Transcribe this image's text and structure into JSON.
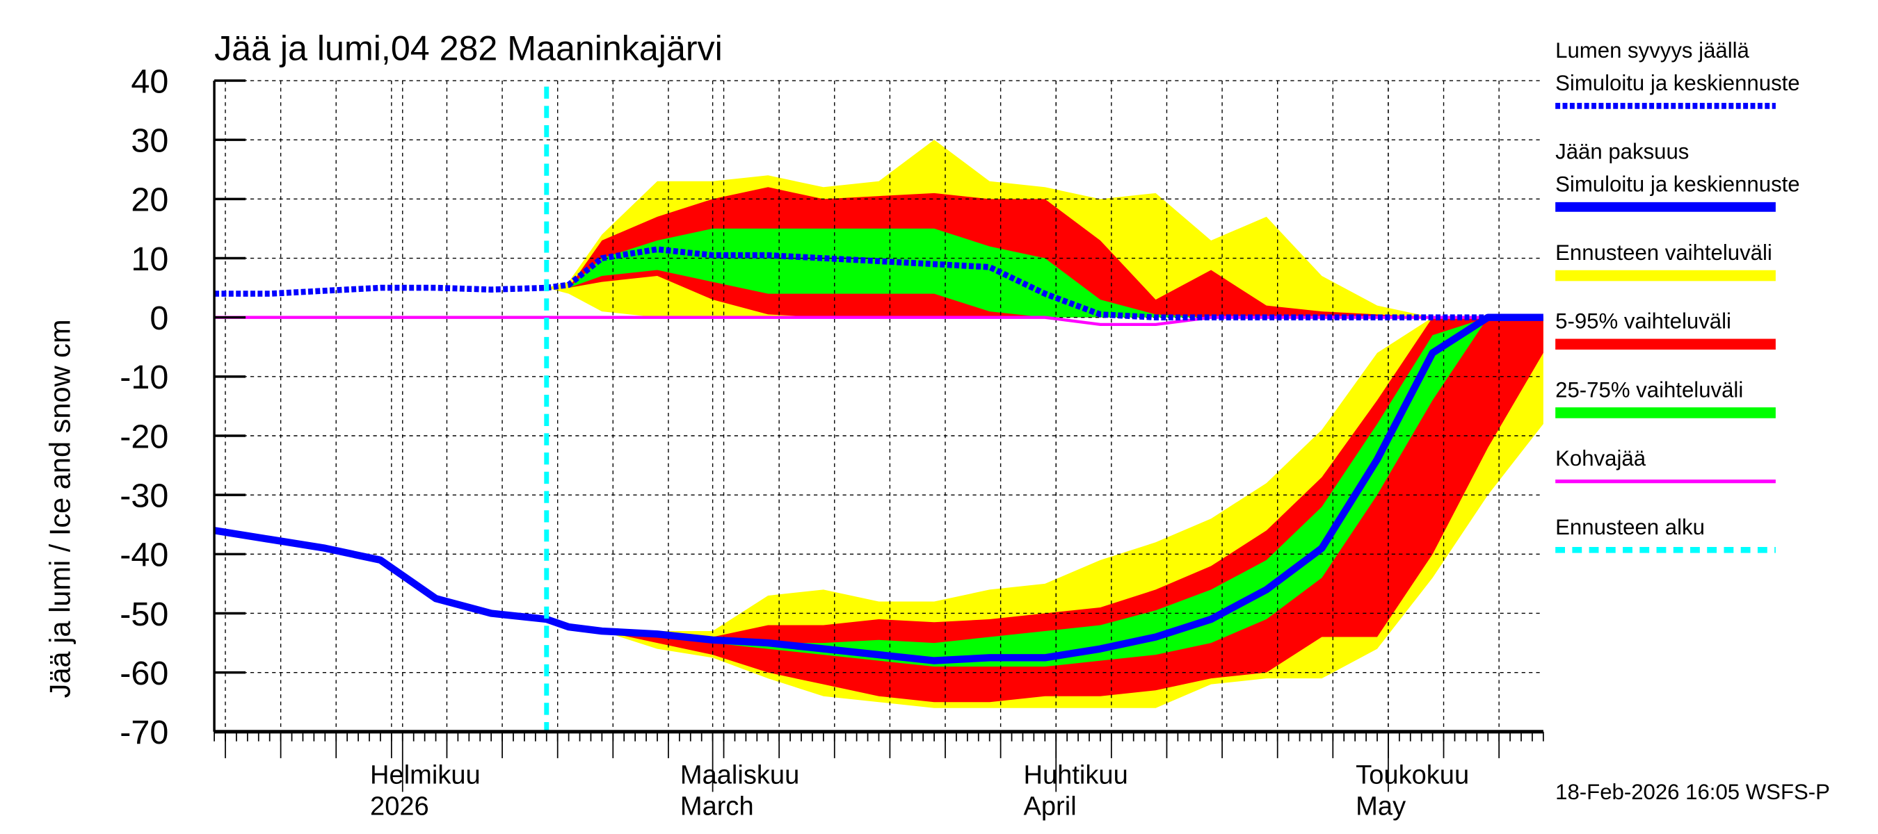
{
  "chart_data": {
    "type": "area",
    "title": "Jää ja lumi,04 282 Maaninkajärvi",
    "ylabel": "Jää ja lumi / Ice and snow    cm",
    "ylim": [
      -70,
      40
    ],
    "yticks": [
      40,
      30,
      20,
      10,
      0,
      -10,
      -20,
      -30,
      -40,
      -50,
      -60,
      -70
    ],
    "xlim": [
      "2026-01-15",
      "2026-05-15"
    ],
    "grid": true,
    "legend_placement": "right",
    "month_labels": [
      {
        "date": "2026-02-01",
        "line1": "Helmikuu",
        "line2": "2026"
      },
      {
        "date": "2026-03-01",
        "line1": "Maaliskuu",
        "line2": "March"
      },
      {
        "date": "2026-04-01",
        "line1": "Huhtikuu",
        "line2": "April"
      },
      {
        "date": "2026-05-01",
        "line1": "Toukokuu",
        "line2": "May"
      }
    ],
    "forecast_start": "2026-02-14",
    "x": [
      "2026-01-15",
      "2026-01-20",
      "2026-01-25",
      "2026-01-30",
      "2026-02-04",
      "2026-02-09",
      "2026-02-14",
      "2026-02-16",
      "2026-02-19",
      "2026-02-24",
      "2026-03-01",
      "2026-03-06",
      "2026-03-11",
      "2026-03-16",
      "2026-03-21",
      "2026-03-26",
      "2026-03-31",
      "2026-04-05",
      "2026-04-10",
      "2026-04-15",
      "2026-04-20",
      "2026-04-25",
      "2026-04-30",
      "2026-05-05",
      "2026-05-10",
      "2026-05-15"
    ],
    "series": {
      "snow_depth": [
        4,
        4,
        4.5,
        5,
        5,
        4.7,
        5,
        5.5,
        10,
        11.5,
        10.5,
        10.5,
        10,
        9.5,
        9,
        8.5,
        4,
        0.5,
        0,
        0,
        0,
        0,
        0,
        0,
        0,
        0
      ],
      "ice_thickness": [
        -36,
        -37.5,
        -39,
        -41,
        -47.5,
        -50,
        -51,
        -52.3,
        -53,
        -53.5,
        -54.5,
        -55,
        -56,
        -57,
        -58,
        -57.5,
        -57.5,
        -56,
        -54,
        -51,
        -46,
        -39,
        -24,
        -6,
        0,
        0
      ],
      "slush_ice": [
        0,
        0,
        0,
        0,
        0,
        0,
        0,
        0,
        0,
        0,
        0,
        0,
        0,
        0,
        0,
        0,
        0,
        -1.2,
        -1.2,
        0,
        0,
        0,
        0,
        0,
        0,
        0
      ],
      "snow_yellow_upper": [
        null,
        null,
        null,
        null,
        null,
        null,
        5,
        6,
        14,
        23,
        23,
        24,
        22,
        23,
        30,
        23,
        22,
        20,
        21,
        13,
        17,
        7,
        2,
        0,
        0,
        0
      ],
      "snow_yellow_lower": [
        null,
        null,
        null,
        null,
        null,
        null,
        5,
        4,
        1,
        0,
        0,
        0,
        0,
        0,
        0,
        0,
        0,
        0,
        0,
        0,
        0,
        0,
        0,
        0,
        0,
        0
      ],
      "snow_red_upper": [
        null,
        null,
        null,
        null,
        null,
        null,
        5,
        5,
        13,
        17,
        20,
        22,
        20,
        20.5,
        21,
        20,
        20,
        13,
        3,
        8,
        2,
        1,
        0.5,
        0,
        0,
        0
      ],
      "snow_red_lower": [
        null,
        null,
        null,
        null,
        null,
        null,
        5,
        5,
        6,
        7,
        3,
        0.5,
        0,
        0,
        0,
        0,
        0,
        0,
        0,
        0,
        0,
        0,
        0,
        0,
        0,
        0
      ],
      "snow_green_upper": [
        null,
        null,
        null,
        null,
        null,
        null,
        5,
        5,
        10,
        13,
        15,
        15,
        15,
        15,
        15,
        12,
        10,
        3,
        0.5,
        0,
        0,
        0,
        0,
        0,
        0,
        0
      ],
      "snow_green_lower": [
        null,
        null,
        null,
        null,
        null,
        null,
        5,
        5,
        7,
        8,
        6,
        4,
        4,
        4,
        4,
        1,
        0,
        0,
        0,
        0,
        0,
        0,
        0,
        0,
        0,
        0
      ],
      "ice_yellow_upper": [
        null,
        null,
        null,
        null,
        null,
        null,
        -51,
        -52,
        -52.5,
        -53,
        -53,
        -47,
        -46,
        -48,
        -48,
        -46,
        -45,
        -41,
        -38,
        -34,
        -28,
        -19,
        -6,
        0,
        0,
        0
      ],
      "ice_yellow_lower": [
        null,
        null,
        null,
        null,
        null,
        null,
        -51,
        -52,
        -53,
        -56,
        -57.5,
        -61,
        -64,
        -65,
        -66,
        -66,
        -66,
        -66,
        -66,
        -62,
        -61,
        -61,
        -56,
        -44,
        -30,
        -18
      ],
      "ice_red_upper": [
        null,
        null,
        null,
        null,
        null,
        null,
        -51,
        -52,
        -52.5,
        -53,
        -54,
        -52,
        -52,
        -51,
        -51.5,
        -51,
        -50,
        -49,
        -46,
        -42,
        -36,
        -27,
        -14,
        0,
        0,
        0
      ],
      "ice_red_lower": [
        null,
        null,
        null,
        null,
        null,
        null,
        -51,
        -52,
        -53,
        -55,
        -57,
        -60,
        -62,
        -64,
        -65,
        -65,
        -64,
        -64,
        -63,
        -61,
        -60,
        -54,
        -54,
        -40,
        -22,
        -6
      ],
      "ice_green_upper": [
        null,
        null,
        null,
        null,
        null,
        null,
        -51,
        -52,
        -52.5,
        -53.5,
        -54,
        -55,
        -55,
        -54.5,
        -55,
        -54,
        -53,
        -52,
        -49.5,
        -46,
        -41,
        -32,
        -18,
        -3,
        0,
        0
      ],
      "ice_green_lower": [
        null,
        null,
        null,
        null,
        null,
        null,
        -51,
        -52,
        -52.5,
        -53.5,
        -55,
        -56,
        -57,
        -58,
        -59,
        -59,
        -59,
        -58,
        -57,
        -55,
        -51,
        -44,
        -30,
        -14,
        0,
        0
      ]
    },
    "legend": [
      {
        "line1": "Lumen syvyys jäällä",
        "line2": "Simuloitu ja keskiennuste",
        "color": "#0000ff",
        "style": "dotted-thick"
      },
      {
        "line1": "Jään paksuus",
        "line2": "Simuloitu ja keskiennuste",
        "color": "#0000ff",
        "style": "solid-thick"
      },
      {
        "line1": "Ennusteen vaihteluväli",
        "line2": "",
        "color": "#ffff00",
        "style": "band"
      },
      {
        "line1": "5-95% vaihteluväli",
        "line2": "",
        "color": "#ff0000",
        "style": "band"
      },
      {
        "line1": "25-75% vaihteluväli",
        "line2": "",
        "color": "#00ff00",
        "style": "band"
      },
      {
        "line1": "Kohvajää",
        "line2": "",
        "color": "#ff00ff",
        "style": "solid"
      },
      {
        "line1": "Ennusteen alku",
        "line2": "",
        "color": "#00ffff",
        "style": "dashed"
      }
    ],
    "colors": {
      "range": "#ffff00",
      "p5_95": "#ff0000",
      "p25_75": "#00ff00",
      "median": "#0000ff",
      "slush": "#ff00ff",
      "forecast_start": "#00ffff"
    }
  },
  "footer": "18-Feb-2026 16:05 WSFS-P"
}
